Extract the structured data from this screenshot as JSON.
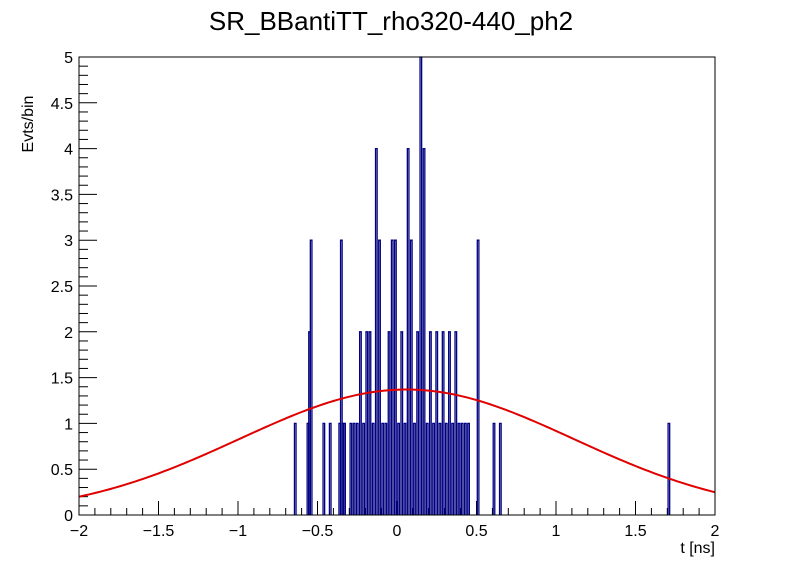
{
  "chart_data": {
    "type": "histogram",
    "title": "SR_BBantiTT_rho320-440_ph2",
    "xlabel": "t [ns]",
    "ylabel": "Evts/bin",
    "xlim": [
      -2,
      2
    ],
    "ylim": [
      0,
      5
    ],
    "x_ticks": [
      -2,
      -1.5,
      -1,
      -0.5,
      0,
      0.5,
      1,
      1.5,
      2
    ],
    "x_tick_labels": [
      "−2",
      "−1.5",
      "−1",
      "−0.5",
      "0",
      "0.5",
      "1",
      "1.5",
      "2"
    ],
    "y_ticks": [
      0,
      0.5,
      1,
      1.5,
      2,
      2.5,
      3,
      3.5,
      4,
      4.5,
      5
    ],
    "y_tick_labels": [
      "0",
      "0.5",
      "1",
      "1.5",
      "2",
      "2.5",
      "3",
      "3.5",
      "4",
      "4.5",
      "5"
    ],
    "bin_width": 0.02,
    "series": [
      {
        "kind": "histogram",
        "color": "#000080",
        "bins": [
          {
            "x": -0.64,
            "y": 1
          },
          {
            "x": -0.56,
            "y": 1
          },
          {
            "x": -0.55,
            "y": 2
          },
          {
            "x": -0.54,
            "y": 3
          },
          {
            "x": -0.46,
            "y": 1
          },
          {
            "x": -0.42,
            "y": 1
          },
          {
            "x": -0.36,
            "y": 1
          },
          {
            "x": -0.35,
            "y": 3
          },
          {
            "x": -0.34,
            "y": 1
          },
          {
            "x": -0.33,
            "y": 1
          },
          {
            "x": -0.29,
            "y": 1
          },
          {
            "x": -0.27,
            "y": 1
          },
          {
            "x": -0.25,
            "y": 1
          },
          {
            "x": -0.23,
            "y": 2
          },
          {
            "x": -0.21,
            "y": 1
          },
          {
            "x": -0.19,
            "y": 2
          },
          {
            "x": -0.17,
            "y": 2
          },
          {
            "x": -0.15,
            "y": 1
          },
          {
            "x": -0.13,
            "y": 4
          },
          {
            "x": -0.11,
            "y": 3
          },
          {
            "x": -0.09,
            "y": 1
          },
          {
            "x": -0.07,
            "y": 1
          },
          {
            "x": -0.05,
            "y": 2
          },
          {
            "x": -0.03,
            "y": 3
          },
          {
            "x": -0.01,
            "y": 3
          },
          {
            "x": 0.01,
            "y": 1
          },
          {
            "x": 0.03,
            "y": 2
          },
          {
            "x": 0.05,
            "y": 1
          },
          {
            "x": 0.07,
            "y": 4
          },
          {
            "x": 0.09,
            "y": 3
          },
          {
            "x": 0.11,
            "y": 1
          },
          {
            "x": 0.13,
            "y": 2
          },
          {
            "x": 0.15,
            "y": 5
          },
          {
            "x": 0.17,
            "y": 4
          },
          {
            "x": 0.19,
            "y": 1
          },
          {
            "x": 0.21,
            "y": 2
          },
          {
            "x": 0.23,
            "y": 1
          },
          {
            "x": 0.25,
            "y": 2
          },
          {
            "x": 0.27,
            "y": 1
          },
          {
            "x": 0.29,
            "y": 2
          },
          {
            "x": 0.31,
            "y": 1
          },
          {
            "x": 0.33,
            "y": 2
          },
          {
            "x": 0.35,
            "y": 1
          },
          {
            "x": 0.37,
            "y": 2
          },
          {
            "x": 0.39,
            "y": 1
          },
          {
            "x": 0.41,
            "y": 1
          },
          {
            "x": 0.43,
            "y": 1
          },
          {
            "x": 0.45,
            "y": 1
          },
          {
            "x": 0.51,
            "y": 3
          },
          {
            "x": 0.61,
            "y": 1
          },
          {
            "x": 0.65,
            "y": 1
          },
          {
            "x": 1.71,
            "y": 1
          }
        ]
      },
      {
        "kind": "fit-curve",
        "color": "#e00000",
        "shape": "gaussian",
        "amplitude": 1.37,
        "mean": 0.06,
        "sigma": 1.05
      }
    ],
    "grid": false,
    "legend": "none"
  }
}
